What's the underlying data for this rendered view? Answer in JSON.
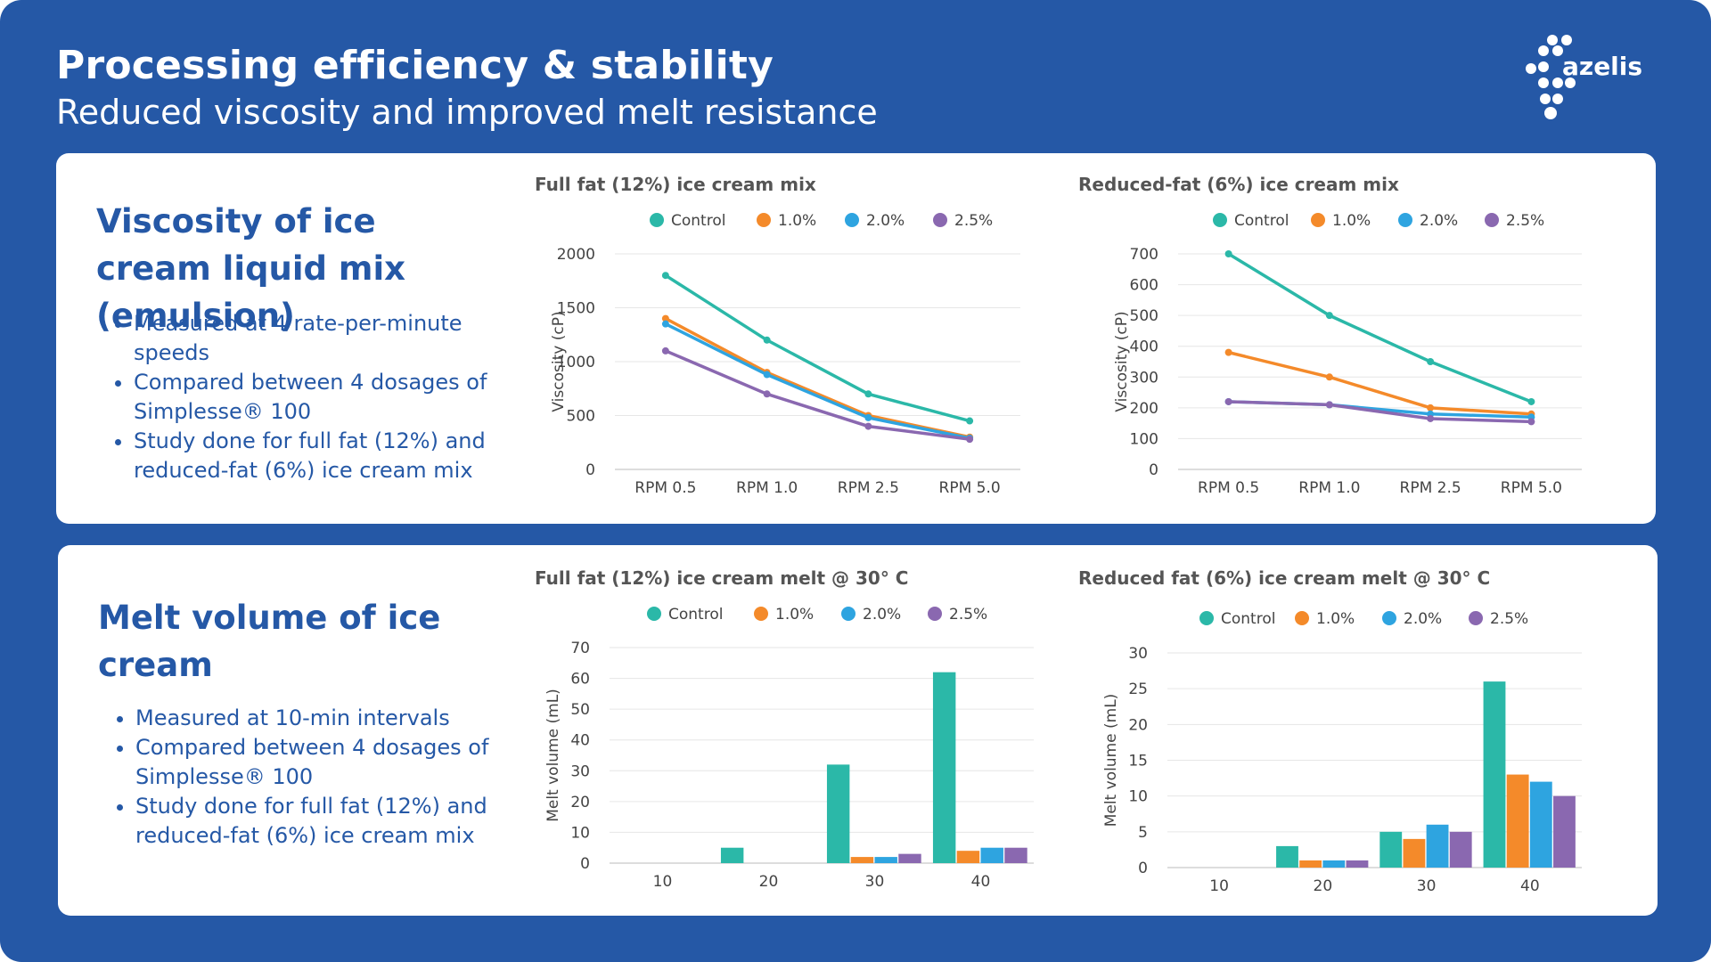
{
  "header": {
    "title": "Processing efficiency & stability",
    "subtitle": "Reduced viscosity and improved melt resistance",
    "logo_text": "azelis"
  },
  "colors": {
    "background": "#2558a6",
    "heading": "#2558a6",
    "series": [
      "#2bb8a8",
      "#f48a2a",
      "#2ea4e0",
      "#8a68b0"
    ]
  },
  "sections": {
    "viscosity": {
      "heading": "Viscosity of ice cream liquid mix (emulsion)",
      "bullets": [
        "Measured at 4 rate-per-minute speeds",
        "Compared between 4 dosages of Simplesse® 100",
        "Study done for full fat (12%) and reduced-fat (6%) ice cream mix"
      ]
    },
    "melt": {
      "heading": "Melt volume of ice cream",
      "bullets": [
        "Measured at 10-min intervals",
        "Compared between 4 dosages of Simplesse® 100",
        "Study done for full fat (12%) and reduced-fat (6%) ice cream mix"
      ]
    }
  },
  "chart_data": [
    {
      "type": "line",
      "title": "Full fat (12%) ice cream mix",
      "ylabel": "Viscosity (cP)",
      "xlabel": "",
      "categories": [
        "RPM 0.5",
        "RPM 1.0",
        "RPM 2.5",
        "RPM 5.0"
      ],
      "ylim": [
        0,
        2000
      ],
      "yticks": [
        0,
        500,
        1000,
        1500,
        2000
      ],
      "legend": "top",
      "series": [
        {
          "name": "Control",
          "values": [
            1800,
            1200,
            700,
            450
          ]
        },
        {
          "name": "1.0%",
          "values": [
            1400,
            900,
            500,
            300
          ]
        },
        {
          "name": "2.0%",
          "values": [
            1350,
            880,
            480,
            290
          ]
        },
        {
          "name": "2.5%",
          "values": [
            1100,
            700,
            400,
            280
          ]
        }
      ]
    },
    {
      "type": "line",
      "title": "Reduced-fat (6%) ice cream mix",
      "ylabel": "Viscosity (cP)",
      "xlabel": "",
      "categories": [
        "RPM 0.5",
        "RPM 1.0",
        "RPM 2.5",
        "RPM 5.0"
      ],
      "ylim": [
        0,
        700
      ],
      "yticks": [
        0,
        100,
        200,
        300,
        400,
        500,
        600,
        700
      ],
      "legend": "top",
      "series": [
        {
          "name": "Control",
          "values": [
            700,
            500,
            350,
            220
          ]
        },
        {
          "name": "1.0%",
          "values": [
            380,
            300,
            200,
            180
          ]
        },
        {
          "name": "2.0%",
          "values": [
            220,
            210,
            180,
            170
          ]
        },
        {
          "name": "2.5%",
          "values": [
            220,
            210,
            165,
            155
          ]
        }
      ]
    },
    {
      "type": "bar",
      "title": "Full fat (12%) ice cream melt @ 30° C",
      "ylabel": "Melt volume (mL)",
      "xlabel": "",
      "categories": [
        "10",
        "20",
        "30",
        "40"
      ],
      "ylim": [
        0,
        70
      ],
      "yticks": [
        0,
        10,
        20,
        30,
        40,
        50,
        60,
        70
      ],
      "legend": "top",
      "series": [
        {
          "name": "Control",
          "values": [
            0,
            5,
            32,
            62
          ]
        },
        {
          "name": "1.0%",
          "values": [
            0,
            0,
            2,
            4
          ]
        },
        {
          "name": "2.0%",
          "values": [
            0,
            0,
            2,
            5
          ]
        },
        {
          "name": "2.5%",
          "values": [
            0,
            0,
            3,
            5
          ]
        }
      ]
    },
    {
      "type": "bar",
      "title": "Reduced fat (6%) ice cream melt @ 30° C",
      "ylabel": "Melt volume (mL)",
      "xlabel": "",
      "categories": [
        "10",
        "20",
        "30",
        "40"
      ],
      "ylim": [
        0,
        30
      ],
      "yticks": [
        0,
        5,
        10,
        15,
        20,
        25,
        30
      ],
      "legend": "top",
      "series": [
        {
          "name": "Control",
          "values": [
            0,
            3,
            5,
            26
          ]
        },
        {
          "name": "1.0%",
          "values": [
            0,
            1,
            4,
            13
          ]
        },
        {
          "name": "2.0%",
          "values": [
            0,
            1,
            6,
            12
          ]
        },
        {
          "name": "2.5%",
          "values": [
            0,
            1,
            5,
            10
          ]
        }
      ]
    }
  ]
}
